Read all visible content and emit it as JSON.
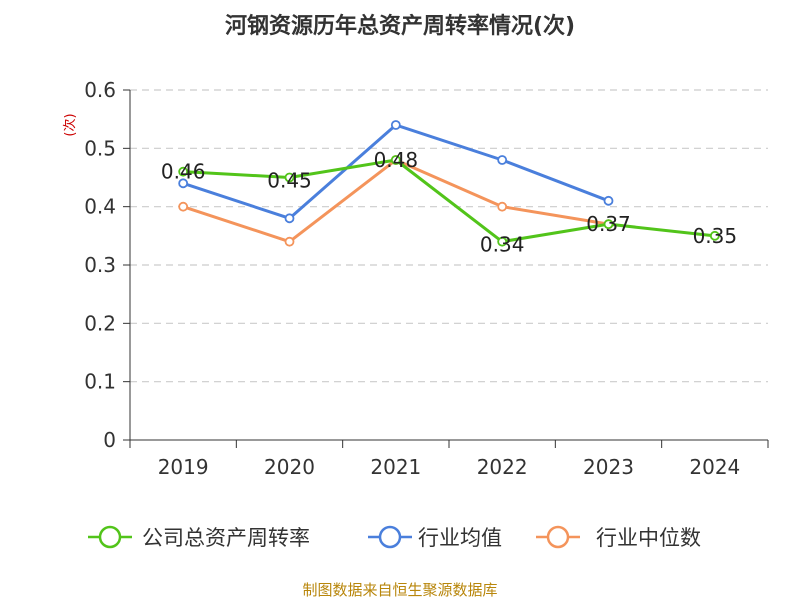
{
  "chart_data": {
    "type": "line",
    "title": "河钢资源历年总资产周转率情况(次)",
    "ylabel": "(次)",
    "categories": [
      "2019",
      "2020",
      "2021",
      "2022",
      "2023",
      "2024"
    ],
    "ylim": [
      0,
      0.6
    ],
    "yticks": [
      "0",
      "0.1",
      "0.2",
      "0.3",
      "0.4",
      "0.5",
      "0.6"
    ],
    "grid": true,
    "legend_position": "bottom",
    "series": [
      {
        "name": "公司总资产周转率",
        "color": "#52c41a",
        "values": [
          0.46,
          0.45,
          0.48,
          0.34,
          0.37,
          0.35
        ],
        "labels": [
          "0.46",
          "0.45",
          "0.48",
          "0.34",
          "0.37",
          "0.35"
        ]
      },
      {
        "name": "行业均值",
        "color": "#4a7fdc",
        "values": [
          0.44,
          0.38,
          0.54,
          0.48,
          0.41,
          null
        ]
      },
      {
        "name": "行业中位数",
        "color": "#f4945b",
        "values": [
          0.4,
          0.34,
          0.48,
          0.4,
          0.37,
          null
        ]
      }
    ]
  },
  "source": "制图数据来自恒生聚源数据库"
}
